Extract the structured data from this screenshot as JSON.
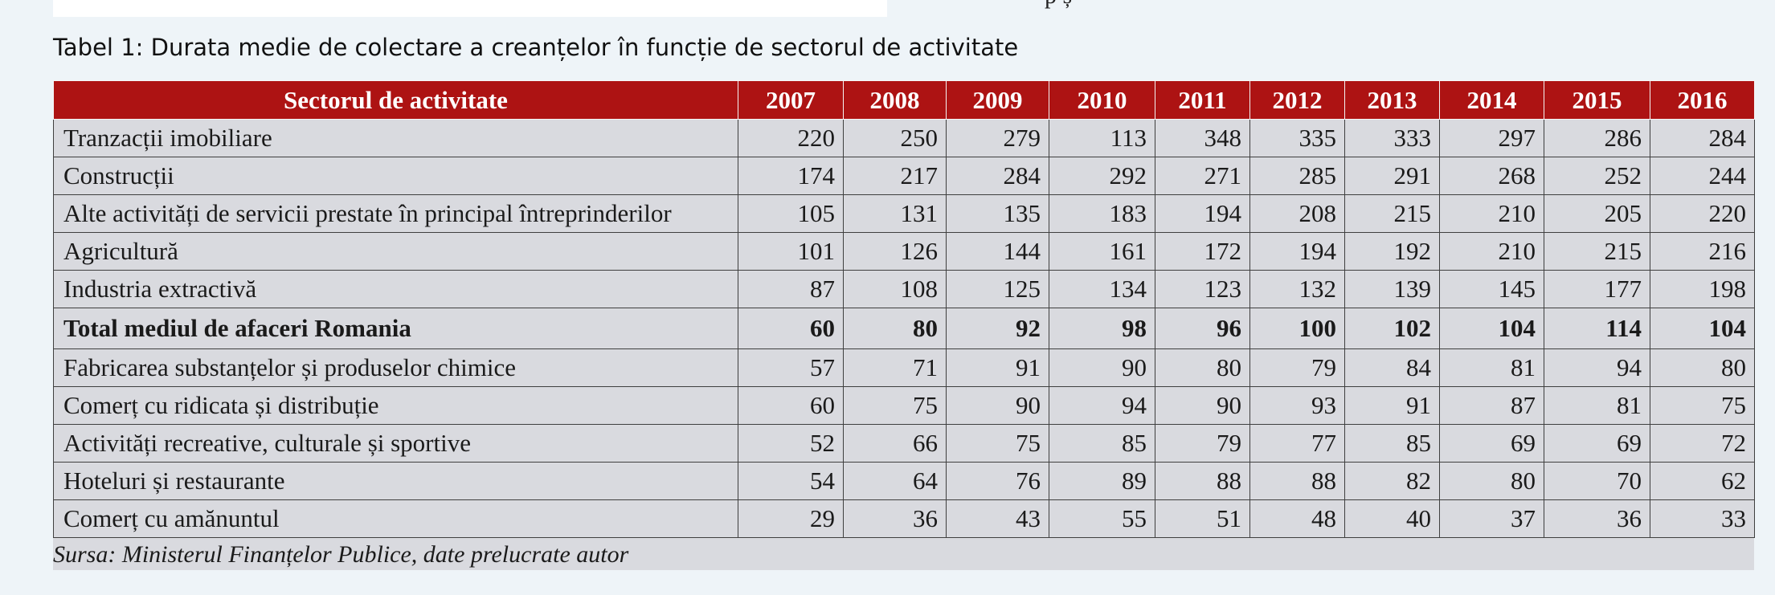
{
  "top_fragment": "p      ș",
  "caption": "Tabel 1: Durata medie de colectare a creanțelor în funcție de sectorul de activitate",
  "table": {
    "headers": [
      "Sectorul de activitate",
      "2007",
      "2008",
      "2009",
      "2010",
      "2011",
      "2012",
      "2013",
      "2014",
      "2015",
      "2016"
    ],
    "rows": [
      {
        "sector": "Tranzacții imobiliare",
        "values": [
          "220",
          "250",
          "279",
          "113",
          "348",
          "335",
          "333",
          "297",
          "286",
          "284"
        ]
      },
      {
        "sector": "Construcții",
        "values": [
          "174",
          "217",
          "284",
          "292",
          "271",
          "285",
          "291",
          "268",
          "252",
          "244"
        ]
      },
      {
        "sector": "Alte activități de servicii prestate în principal întreprinderilor",
        "values": [
          "105",
          "131",
          "135",
          "183",
          "194",
          "208",
          "215",
          "210",
          "205",
          "220"
        ]
      },
      {
        "sector": "Agricultură",
        "values": [
          "101",
          "126",
          "144",
          "161",
          "172",
          "194",
          "192",
          "210",
          "215",
          "216"
        ]
      },
      {
        "sector": "Industria extractivă",
        "values": [
          "87",
          "108",
          "125",
          "134",
          "123",
          "132",
          "139",
          "145",
          "177",
          "198"
        ]
      },
      {
        "sector": "Total mediul de afaceri Romania",
        "values": [
          "60",
          "80",
          "92",
          "98",
          "96",
          "100",
          "102",
          "104",
          "114",
          "104"
        ],
        "total": true
      },
      {
        "sector": "Fabricarea substanțelor și produselor chimice",
        "values": [
          "57",
          "71",
          "91",
          "90",
          "80",
          "79",
          "84",
          "81",
          "94",
          "80"
        ]
      },
      {
        "sector": "Comerț cu ridicata și distribuție",
        "values": [
          "60",
          "75",
          "90",
          "94",
          "90",
          "93",
          "91",
          "87",
          "81",
          "75"
        ]
      },
      {
        "sector": "Activități recreative, culturale și sportive",
        "values": [
          "52",
          "66",
          "75",
          "85",
          "79",
          "77",
          "85",
          "69",
          "69",
          "72"
        ]
      },
      {
        "sector": "Hoteluri și restaurante",
        "values": [
          "54",
          "64",
          "76",
          "89",
          "88",
          "88",
          "82",
          "80",
          "70",
          "62"
        ]
      },
      {
        "sector": "Comerț cu amănuntul",
        "values": [
          "29",
          "36",
          "43",
          "55",
          "51",
          "48",
          "40",
          "37",
          "36",
          "33"
        ]
      }
    ]
  },
  "source": "Sursa: Ministerul Finanțelor Publice, date prelucrate autor",
  "colors": {
    "header_bg": "#ad1313",
    "header_text": "#ffffff",
    "row_bg": "#d9dadf",
    "page_bg": "#eef4f8"
  }
}
